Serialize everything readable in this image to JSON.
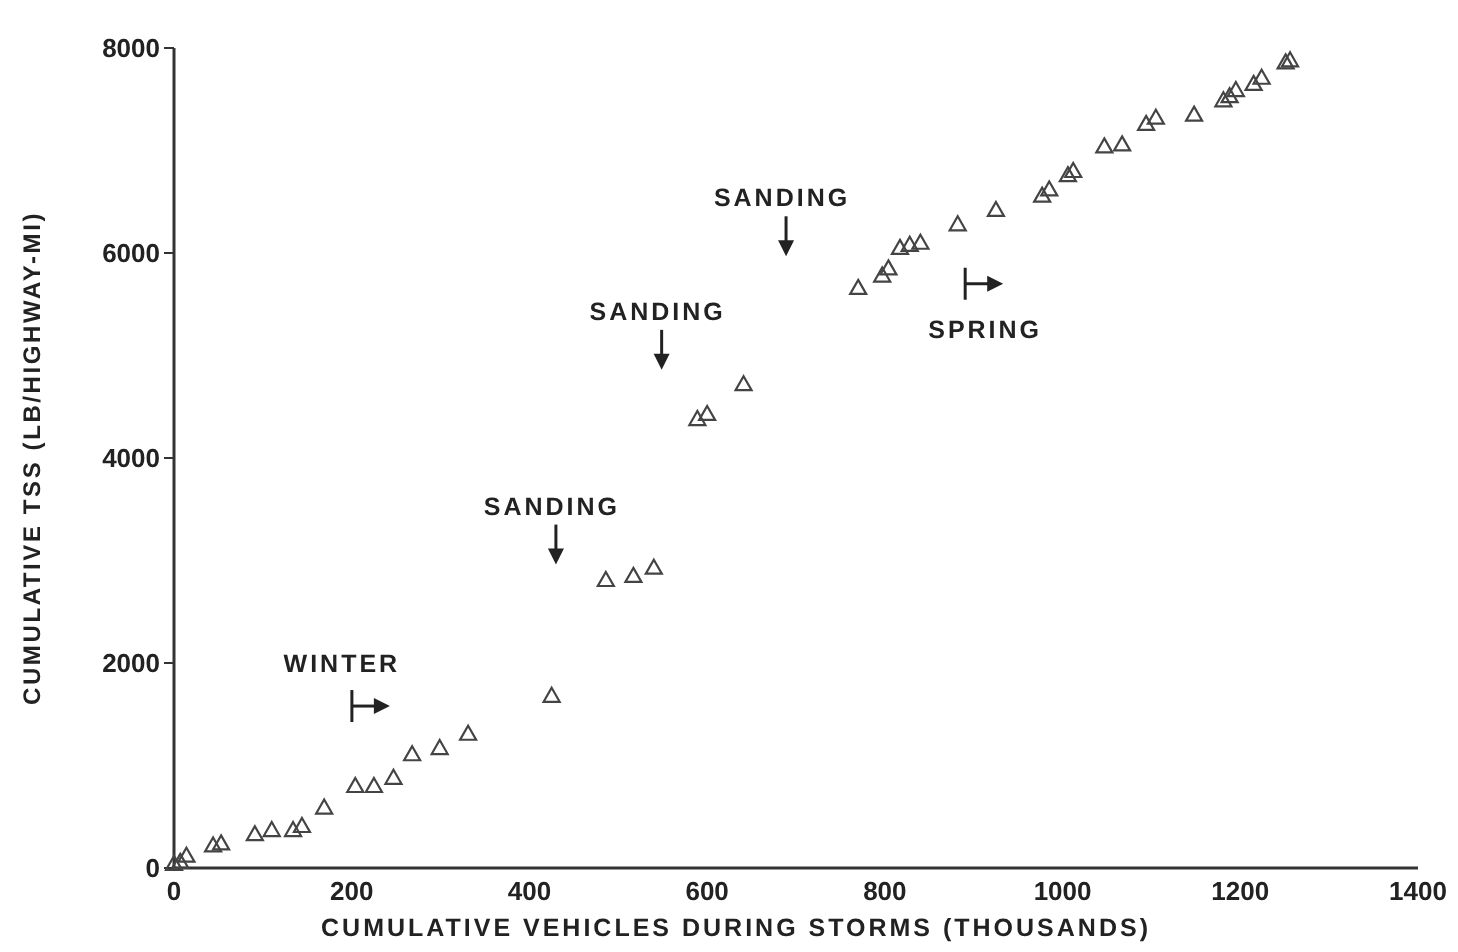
{
  "chart_data": {
    "type": "scatter",
    "xlabel": "CUMULATIVE VEHICLES DURING STORMS (THOUSANDS)",
    "ylabel": "CUMULATIVE TSS (LB/HIGHWAY-MI)",
    "xlim": [
      0,
      1400
    ],
    "ylim": [
      0,
      8000
    ],
    "xticks": [
      0,
      200,
      400,
      600,
      800,
      1000,
      1200,
      1400
    ],
    "yticks": [
      0,
      2000,
      4000,
      6000,
      8000
    ],
    "grid": false,
    "marker": "triangle",
    "series": [
      {
        "color": "#444444",
        "x": [
          0,
          7,
          14,
          44,
          53,
          91,
          110,
          134,
          144,
          169,
          204,
          225,
          247,
          268,
          299,
          331,
          425,
          486,
          517,
          540,
          589,
          600,
          641,
          770,
          797,
          804,
          817,
          828,
          840,
          882,
          925,
          977,
          985,
          1006,
          1012,
          1047,
          1067,
          1094,
          1105,
          1148,
          1181,
          1188,
          1195,
          1215,
          1224,
          1251,
          1256
        ],
        "values": [
          40,
          60,
          120,
          220,
          240,
          330,
          370,
          370,
          410,
          590,
          800,
          800,
          880,
          1110,
          1170,
          1310,
          1680,
          2810,
          2850,
          2930,
          4380,
          4430,
          4720,
          5660,
          5780,
          5850,
          6050,
          6080,
          6100,
          6280,
          6420,
          6560,
          6620,
          6760,
          6800,
          7040,
          7060,
          7260,
          7320,
          7350,
          7490,
          7530,
          7590,
          7650,
          7710,
          7860,
          7880
        ]
      }
    ],
    "annotations": [
      "WINTER",
      "SANDING",
      "SANDING",
      "SANDING",
      "SPRING"
    ]
  }
}
